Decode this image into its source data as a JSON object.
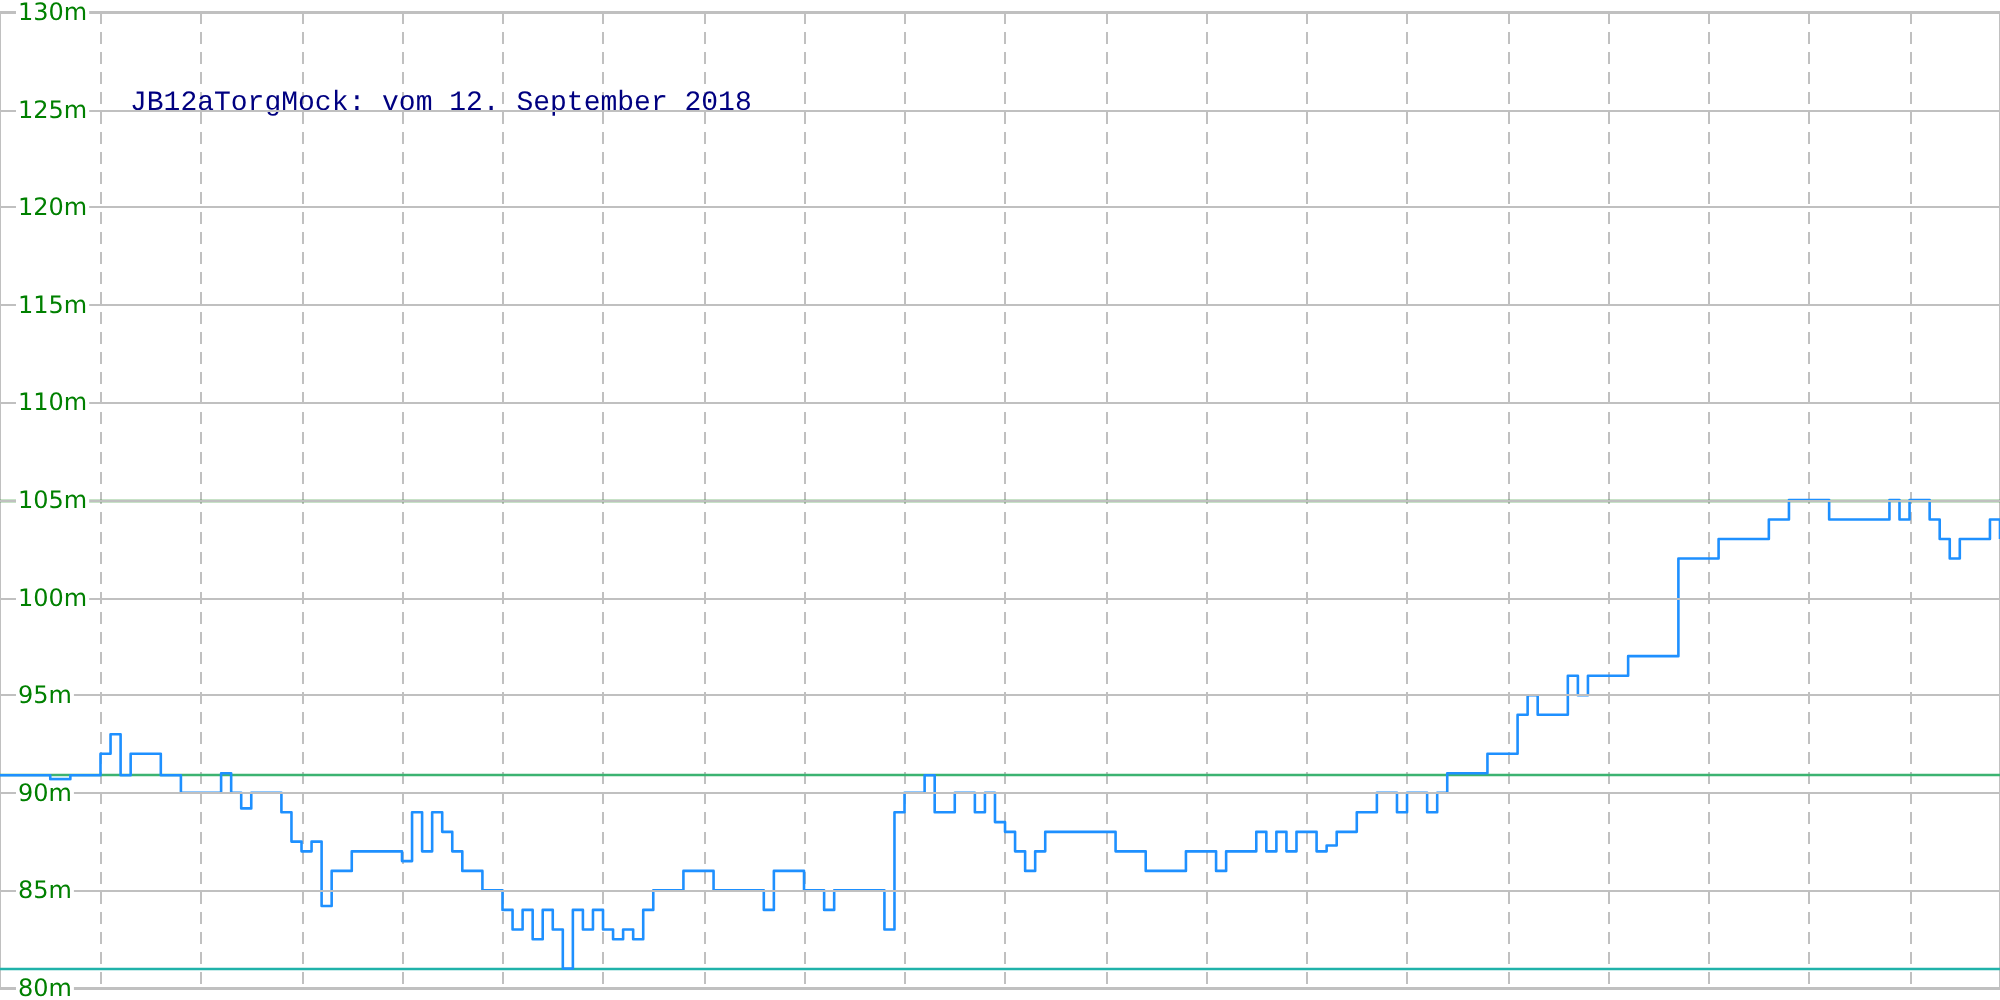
{
  "chart_data": {
    "type": "step",
    "title": "JB12aTorgMock: vom 12. September 2018",
    "categories": [
      null,
      null,
      null,
      null,
      null,
      null,
      null,
      null,
      null,
      null,
      null,
      null,
      null,
      null,
      null,
      null,
      null,
      null,
      null,
      null,
      null,
      null,
      null,
      null,
      null,
      null,
      null,
      null,
      null,
      null,
      null,
      null,
      null,
      null,
      null,
      null,
      null,
      null,
      null,
      null,
      null,
      null,
      null,
      null,
      null,
      null,
      null,
      null,
      null,
      null,
      null,
      null,
      null,
      null,
      null,
      null,
      null,
      null,
      null,
      null,
      null,
      null,
      null,
      null,
      null,
      null,
      null,
      null,
      null,
      null,
      null,
      null,
      null,
      null,
      null,
      null,
      null,
      null,
      null,
      null,
      null,
      null,
      null,
      null,
      null,
      null,
      null,
      null,
      null,
      null,
      null,
      null,
      null,
      null,
      null,
      null,
      null,
      null,
      null,
      null,
      null,
      null,
      null,
      null,
      null,
      null,
      null,
      null,
      null,
      null,
      null,
      null,
      null,
      null,
      null,
      null,
      null,
      null,
      null,
      null,
      null,
      null,
      null,
      null,
      null,
      null,
      null,
      null,
      null,
      null,
      null,
      null,
      null,
      null,
      null,
      null,
      null,
      null,
      null,
      null,
      null,
      null,
      null,
      null,
      null,
      null,
      null,
      null,
      null,
      null,
      null,
      null,
      null,
      null,
      null,
      null,
      null,
      null,
      null,
      null,
      null,
      null,
      null,
      null,
      null,
      null,
      null,
      null,
      null,
      null,
      null,
      null,
      null,
      null,
      null,
      null,
      null,
      null,
      null,
      null,
      null,
      null,
      null,
      null,
      null,
      null,
      null,
      null,
      null,
      null,
      null,
      null,
      null,
      null,
      null,
      null,
      null,
      null,
      null,
      null
    ],
    "series": [
      {
        "color": "#1e90ff",
        "values": [
          90.9,
          90.9,
          90.9,
          90.9,
          90.9,
          90.7,
          90.7,
          90.9,
          90.9,
          90.9,
          92,
          93,
          90.9,
          92,
          92,
          92,
          90.9,
          90.9,
          90,
          90,
          90,
          90,
          91,
          90,
          89.2,
          90,
          90,
          90,
          89,
          87.5,
          87,
          87.5,
          84.2,
          86,
          86,
          87,
          87,
          87,
          87,
          87,
          86.5,
          89,
          87,
          89,
          88,
          87,
          86,
          86,
          85,
          85,
          84,
          83,
          84,
          82.5,
          84,
          83,
          81,
          84,
          83,
          84,
          83,
          82.5,
          83,
          82.5,
          84,
          85,
          85,
          85,
          86,
          86,
          86,
          85,
          85,
          85,
          85,
          85,
          84,
          86,
          86,
          86,
          85,
          85,
          84,
          85,
          85,
          85,
          85,
          85,
          83,
          89,
          90,
          90,
          90.9,
          89,
          89,
          90,
          90,
          89,
          90,
          88.5,
          88,
          87,
          86,
          87,
          88,
          88,
          88,
          88,
          88,
          88,
          88,
          87,
          87,
          87,
          86,
          86,
          86,
          86,
          87,
          87,
          87,
          86,
          87,
          87,
          87,
          88,
          87,
          88,
          87,
          88,
          88,
          87,
          87.3,
          88,
          88,
          89,
          89,
          90,
          90,
          89,
          90,
          90,
          89,
          90,
          91,
          91,
          91,
          91,
          92,
          92,
          92,
          94,
          95,
          94,
          94,
          94,
          96,
          95,
          96,
          96,
          96,
          96,
          97,
          97,
          97,
          97,
          97,
          102,
          102,
          102,
          102,
          103,
          103,
          103,
          103,
          103,
          104,
          104,
          105,
          105,
          105,
          105,
          104,
          104,
          104,
          104,
          104,
          104,
          105,
          104,
          105,
          105,
          104,
          103,
          102,
          103,
          103,
          103,
          104,
          103
        ]
      }
    ],
    "ylim": [
      80,
      130
    ],
    "yticks": [
      {
        "value": 80,
        "label": "80m"
      },
      {
        "value": 85,
        "label": "85m"
      },
      {
        "value": 90,
        "label": "90m"
      },
      {
        "value": 95,
        "label": "95m"
      },
      {
        "value": 100,
        "label": "100m"
      },
      {
        "value": 105,
        "label": "105m"
      },
      {
        "value": 110,
        "label": "110m"
      },
      {
        "value": 115,
        "label": "115m"
      },
      {
        "value": 120,
        "label": "120m"
      },
      {
        "value": 125,
        "label": "125m"
      },
      {
        "value": 130,
        "label": "130m"
      }
    ],
    "ref_lines": [
      {
        "axis": "y",
        "value": 105,
        "color": "#228b22"
      },
      {
        "axis": "y",
        "value": 90.9,
        "color": "#3cb371"
      },
      {
        "axis": "y",
        "value": 81,
        "color": "#20b2aa"
      }
    ],
    "grid": true,
    "tick_labels": "y",
    "line_style": "solid"
  }
}
